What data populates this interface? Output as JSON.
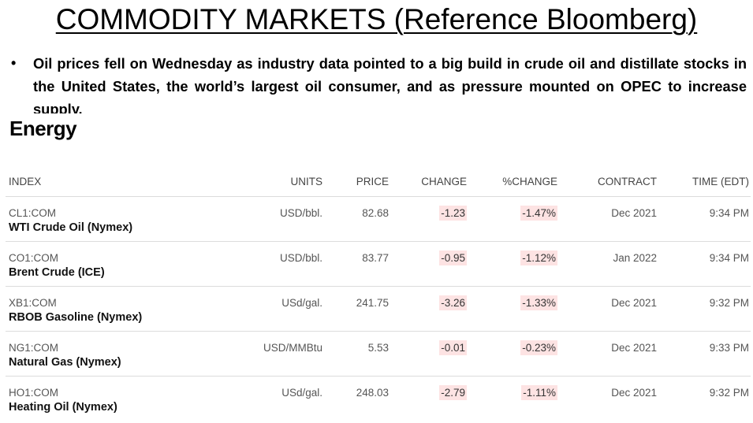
{
  "slide": {
    "title": "COMMODITY MARKETS (Reference Bloomberg)",
    "bullet_symbol": "•",
    "bullet_text": "Oil prices fell on Wednesday as industry data pointed to a big build in crude oil and distillate stocks in the United States, the world’s largest oil consumer, and as pressure mounted on OPEC to increase supply."
  },
  "panel": {
    "title": "Energy",
    "headers": {
      "index": "INDEX",
      "units": "UNITS",
      "price": "PRICE",
      "change": "CHANGE",
      "pct_change": "%CHANGE",
      "contract": "CONTRACT",
      "time": "TIME (EDT)"
    },
    "rows": [
      {
        "ticker": "CL1:COM",
        "name": "WTI Crude Oil (Nymex)",
        "units": "USD/bbl.",
        "price": "82.68",
        "change": "-1.23",
        "pct_change": "-1.47%",
        "contract": "Dec 2021",
        "time": "9:34 PM"
      },
      {
        "ticker": "CO1:COM",
        "name": "Brent Crude (ICE)",
        "units": "USD/bbl.",
        "price": "83.77",
        "change": "-0.95",
        "pct_change": "-1.12%",
        "contract": "Jan 2022",
        "time": "9:34 PM"
      },
      {
        "ticker": "XB1:COM",
        "name": "RBOB Gasoline (Nymex)",
        "units": "USd/gal.",
        "price": "241.75",
        "change": "-3.26",
        "pct_change": "-1.33%",
        "contract": "Dec 2021",
        "time": "9:32 PM"
      },
      {
        "ticker": "NG1:COM",
        "name": "Natural Gas (Nymex)",
        "units": "USD/MMBtu",
        "price": "5.53",
        "change": "-0.01",
        "pct_change": "-0.23%",
        "contract": "Dec 2021",
        "time": "9:33 PM"
      },
      {
        "ticker": "HO1:COM",
        "name": "Heating Oil (Nymex)",
        "units": "USd/gal.",
        "price": "248.03",
        "change": "-2.79",
        "pct_change": "-1.11%",
        "contract": "Dec 2021",
        "time": "9:32 PM"
      }
    ],
    "colors": {
      "negative_highlight": "#fde3e3",
      "row_divider": "#dcdcdc"
    }
  }
}
